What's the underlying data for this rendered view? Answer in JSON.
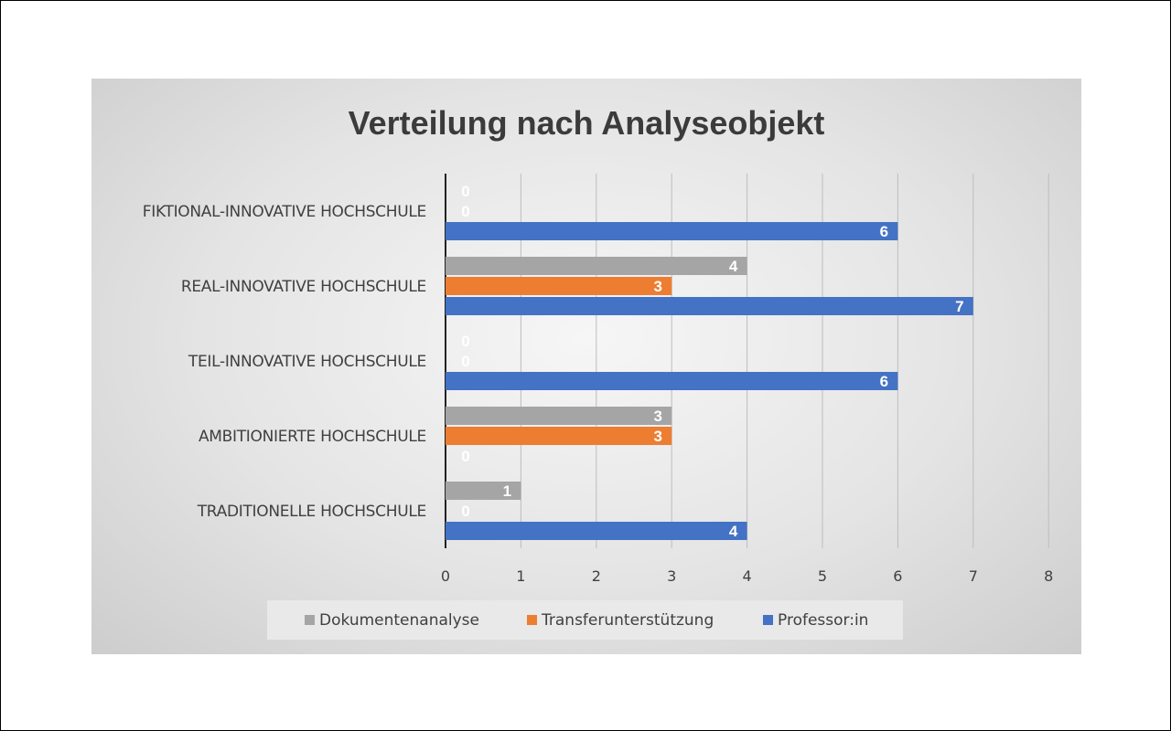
{
  "chart_data": {
    "type": "bar",
    "orientation": "horizontal",
    "title": "Verteilung nach Analyseobjekt",
    "categories": [
      "TRADITIONELLE HOCHSCHULE",
      "AMBITIONIERTE HOCHSCHULE",
      "TEIL-INNOVATIVE HOCHSCHULE",
      "REAL-INNOVATIVE HOCHSCHULE",
      "FIKTIONAL-INNOVATIVE HOCHSCHULE"
    ],
    "series": [
      {
        "name": "Dokumentenanalyse",
        "color": "#a5a5a5",
        "values": [
          1,
          3,
          0,
          4,
          0
        ]
      },
      {
        "name": "Transferunterstützung",
        "color": "#ed7d31",
        "values": [
          0,
          3,
          0,
          3,
          0
        ]
      },
      {
        "name": "Professor:in",
        "color": "#4472c4",
        "values": [
          4,
          0,
          6,
          7,
          6
        ]
      }
    ],
    "xlim": [
      0,
      8
    ],
    "xticks": [
      "0",
      "1",
      "2",
      "3",
      "4",
      "5",
      "6",
      "7",
      "8"
    ],
    "grid": true,
    "data_labels": true,
    "legend": "bottom"
  }
}
